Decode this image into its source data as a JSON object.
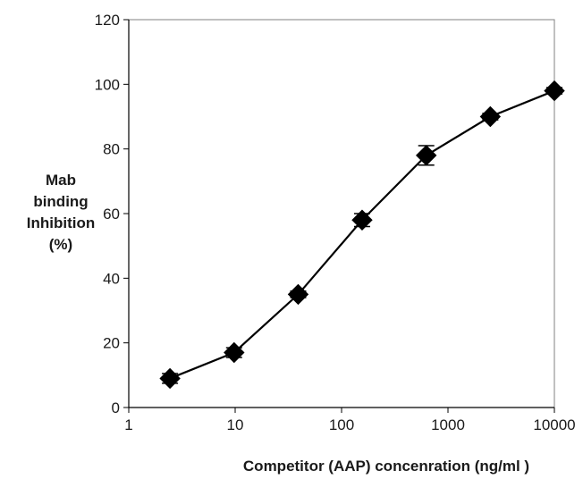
{
  "chart_data": {
    "type": "line",
    "title": "",
    "xlabel": "Competitor (AAP) concenration (ng/ml )",
    "ylabel": [
      "Mab",
      "binding",
      "Inhibition",
      "(%)"
    ],
    "x_scale": "log",
    "xlim": [
      1,
      10000
    ],
    "ylim": [
      0,
      120
    ],
    "x_ticks": [
      1,
      10,
      100,
      1000,
      10000
    ],
    "x_tick_labels": [
      "1",
      "10",
      "100",
      "1000",
      "10000"
    ],
    "y_ticks": [
      0,
      20,
      40,
      60,
      80,
      100,
      120
    ],
    "y_tick_labels": [
      "0",
      "20",
      "40",
      "60",
      "80",
      "100",
      "120"
    ],
    "grid": false,
    "series": [
      {
        "marker": "diamond",
        "color": "#000000",
        "x": [
          2.44,
          9.77,
          39.1,
          156,
          625,
          2500,
          10000
        ],
        "y": [
          9,
          17,
          35,
          58,
          78,
          90,
          98
        ],
        "error": [
          1.5,
          1.5,
          1,
          2,
          3,
          1,
          1
        ]
      }
    ]
  }
}
